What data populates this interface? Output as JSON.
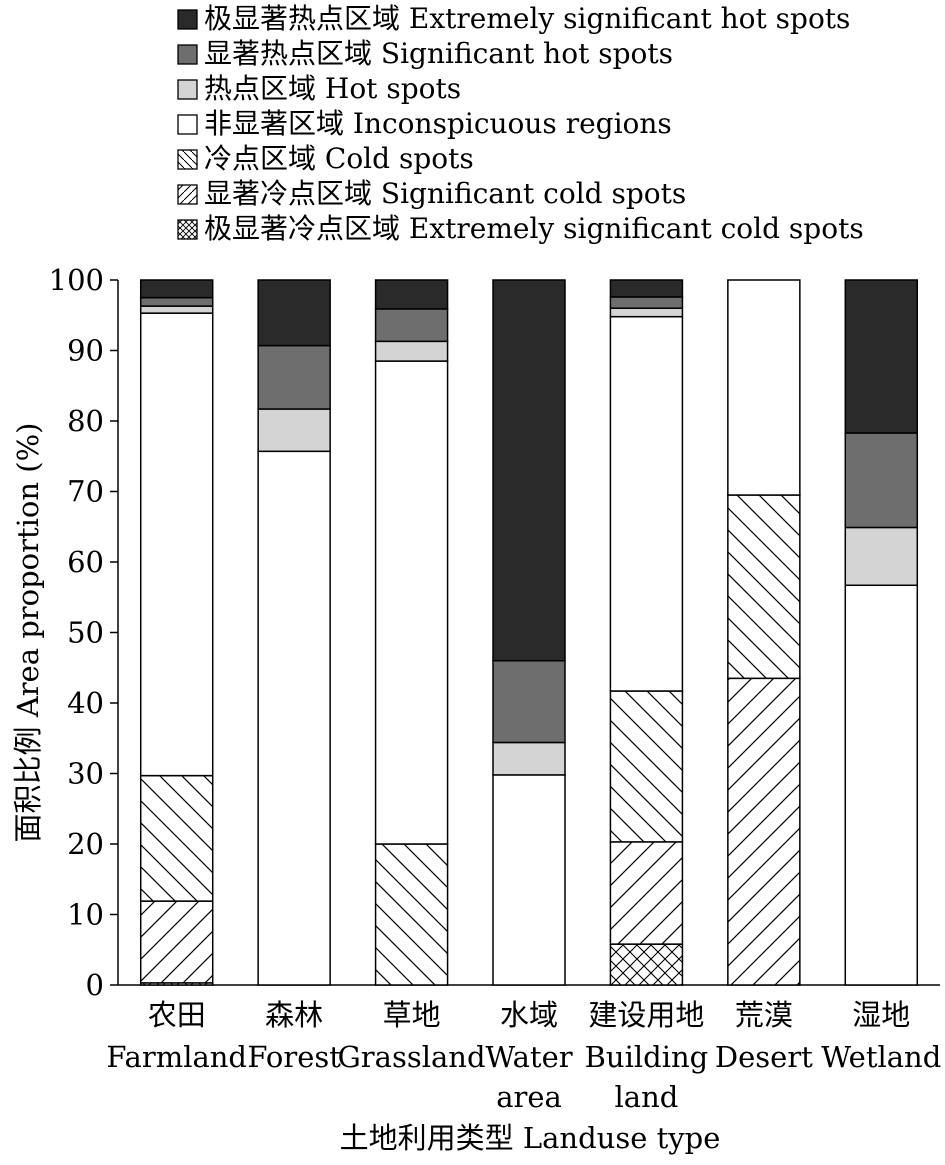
{
  "chart_data": {
    "type": "bar",
    "stacked": true,
    "categories": [
      {
        "zh": "农田",
        "en": [
          "Farmland"
        ]
      },
      {
        "zh": "森林",
        "en": [
          "Forest"
        ]
      },
      {
        "zh": "草地",
        "en": [
          "Grassland"
        ]
      },
      {
        "zh": "水域",
        "en": [
          "Water",
          "area"
        ]
      },
      {
        "zh": "建设用地",
        "en": [
          "Building",
          "land"
        ]
      },
      {
        "zh": "荒漠",
        "en": [
          "Desert"
        ]
      },
      {
        "zh": "湿地",
        "en": [
          "Wetland"
        ]
      }
    ],
    "series": [
      {
        "name": "极显著冷点区域 Extremely significant cold spots",
        "pattern": "crosshatch",
        "values": [
          0.3,
          0,
          0,
          0,
          5.8,
          0,
          0
        ]
      },
      {
        "name": "显著冷点区域 Significant cold spots",
        "pattern": "hatch-up",
        "values": [
          11.6,
          0,
          0,
          0,
          14.5,
          43.5,
          0
        ]
      },
      {
        "name": "冷点区域 Cold spots",
        "pattern": "hatch-down",
        "values": [
          17.8,
          0,
          20.0,
          0,
          21.4,
          26.0,
          0
        ]
      },
      {
        "name": "非显著区域 Inconspicuous regions",
        "color": "#ffffff",
        "values": [
          65.6,
          75.7,
          68.5,
          29.8,
          53.1,
          30.5,
          56.7
        ]
      },
      {
        "name": "热点区域 Hot spots",
        "color": "#d4d4d4",
        "values": [
          1.0,
          6.0,
          2.8,
          4.6,
          1.2,
          0,
          8.2
        ]
      },
      {
        "name": "显著热点区域 Significant hot spots",
        "color": "#6e6e6e",
        "values": [
          1.2,
          9.0,
          4.6,
          11.6,
          1.6,
          0,
          13.4
        ]
      },
      {
        "name": "极显著热点区域 Extremely significant hot spots",
        "color": "#2a2a2a",
        "values": [
          2.5,
          9.3,
          4.1,
          54.0,
          2.4,
          0,
          21.7
        ]
      }
    ],
    "legend_order": [
      6,
      5,
      4,
      3,
      2,
      1,
      0
    ],
    "ylabel": "面积比例 Area proportion (%)",
    "xlabel": "土地利用类型 Landuse type",
    "ylim": [
      0,
      100
    ],
    "yticks": [
      0,
      10,
      20,
      30,
      40,
      50,
      60,
      70,
      80,
      90,
      100
    ],
    "legend_position": "top-left"
  }
}
